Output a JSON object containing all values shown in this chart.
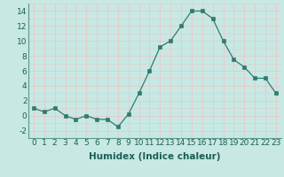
{
  "x": [
    0,
    1,
    2,
    3,
    4,
    5,
    6,
    7,
    8,
    9,
    10,
    11,
    12,
    13,
    14,
    15,
    16,
    17,
    18,
    19,
    20,
    21,
    22,
    23
  ],
  "y": [
    1,
    0.5,
    1,
    0,
    -0.5,
    0,
    -0.5,
    -0.5,
    -1.5,
    0.2,
    3,
    6,
    9.2,
    10,
    12,
    14,
    14,
    13,
    10,
    7.5,
    6.5,
    5,
    5,
    3
  ],
  "line_color": "#2e7d6e",
  "marker_color": "#2e7d6e",
  "bg_color": "#c8e8e4",
  "grid_color": "#e8c8c8",
  "title": "",
  "xlabel": "Humidex (Indice chaleur)",
  "ylabel": "",
  "xlim": [
    -0.5,
    23.5
  ],
  "ylim": [
    -3,
    15
  ],
  "yticks": [
    -2,
    0,
    2,
    4,
    6,
    8,
    10,
    12,
    14
  ],
  "xticks": [
    0,
    1,
    2,
    3,
    4,
    5,
    6,
    7,
    8,
    9,
    10,
    11,
    12,
    13,
    14,
    15,
    16,
    17,
    18,
    19,
    20,
    21,
    22,
    23
  ],
  "xtick_labels": [
    "0",
    "1",
    "2",
    "3",
    "4",
    "5",
    "6",
    "7",
    "8",
    "9",
    "10",
    "11",
    "12",
    "13",
    "14",
    "15",
    "16",
    "17",
    "18",
    "19",
    "20",
    "21",
    "22",
    "23"
  ],
  "label_fontsize": 7.5,
  "tick_fontsize": 6.5
}
